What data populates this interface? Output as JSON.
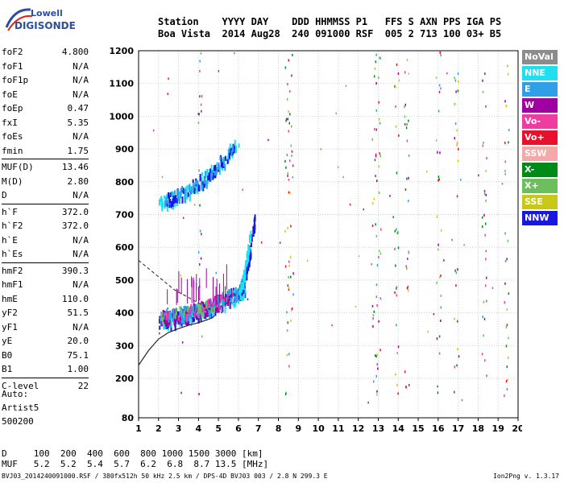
{
  "logo": {
    "line1": "Lowell",
    "line2": "DIGISONDE"
  },
  "header": {
    "labels": "Station    YYYY DAY    DDD HHMMSS P1   FFS S AXN PPS IGA PS",
    "values": "Boa Vista  2014 Aug28  240 091000 RSF  005 2 713 100 03+ B5"
  },
  "params": [
    {
      "name": "foF2",
      "value": "4.800"
    },
    {
      "name": "foF1",
      "value": "N/A"
    },
    {
      "name": "foF1p",
      "value": "N/A"
    },
    {
      "name": "foE",
      "value": "N/A"
    },
    {
      "name": "foEp",
      "value": "0.47"
    },
    {
      "name": "fxI",
      "value": "5.35"
    },
    {
      "name": "foEs",
      "value": "N/A"
    },
    {
      "name": "fmin",
      "value": "1.75"
    },
    {
      "name": "MUF(D)",
      "value": "13.46"
    },
    {
      "name": "M(D)",
      "value": "2.80"
    },
    {
      "name": "D",
      "value": "N/A"
    },
    {
      "name": "h`F",
      "value": "372.0"
    },
    {
      "name": "h`F2",
      "value": "372.0"
    },
    {
      "name": "h`E",
      "value": "N/A"
    },
    {
      "name": "h`Es",
      "value": "N/A"
    },
    {
      "name": "hmF2",
      "value": "390.3"
    },
    {
      "name": "hmF1",
      "value": "N/A"
    },
    {
      "name": "hmE",
      "value": "110.0"
    },
    {
      "name": "yF2",
      "value": "51.5"
    },
    {
      "name": "yF1",
      "value": "N/A"
    },
    {
      "name": "yE",
      "value": "20.0"
    },
    {
      "name": "B0",
      "value": "75.1"
    },
    {
      "name": "B1",
      "value": "1.00"
    },
    {
      "name": "C-level",
      "value": "22"
    }
  ],
  "auto": {
    "line1": "Auto:",
    "line2": "Artist5",
    "line3": "500200"
  },
  "legend": [
    {
      "label": "NoVal",
      "color": "#8c8c8c"
    },
    {
      "label": "NNE",
      "color": "#20e0f0"
    },
    {
      "label": "E",
      "color": "#2f9fe8"
    },
    {
      "label": "W",
      "color": "#a000a0"
    },
    {
      "label": "Vo-",
      "color": "#f03ca0"
    },
    {
      "label": "Vo+",
      "color": "#e8102c"
    },
    {
      "label": "SSW",
      "color": "#f4a8a8"
    },
    {
      "label": "X-",
      "color": "#008a18"
    },
    {
      "label": "X+",
      "color": "#6cbf5c"
    },
    {
      "label": "SSE",
      "color": "#c8c818"
    },
    {
      "label": "NNW",
      "color": "#1818e0"
    }
  ],
  "dmuf": {
    "d_row": "D     100  200  400  600  800 1000 1500 3000 [km]",
    "muf_row": "MUF   5.2  5.2  5.4  5.7  6.2  6.8  8.7 13.5 [MHz]"
  },
  "footer": "BVJ03_2014240091000.RSF / 380fx512h 50 kHz 2.5 km / DPS-4D BVJ03 003 / 2.8 N 299.3 E",
  "version": "Ion2Png v. 1.3.17",
  "chart_data": {
    "type": "scatter",
    "x_ticks": [
      1,
      2,
      3,
      4,
      5,
      6,
      7,
      8,
      9,
      10,
      11,
      12,
      13,
      14,
      15,
      16,
      17,
      18,
      19,
      20
    ],
    "y_ticks": [
      80,
      200,
      300,
      400,
      500,
      600,
      700,
      800,
      900,
      1000,
      1100,
      1200
    ],
    "xlim": [
      1,
      20
    ],
    "ylim": [
      80,
      1200
    ],
    "grid": true,
    "profile": [
      [
        1.0,
        240
      ],
      [
        1.5,
        285
      ],
      [
        2.0,
        320
      ],
      [
        2.5,
        340
      ],
      [
        3.0,
        352
      ],
      [
        3.5,
        362
      ],
      [
        4.0,
        370
      ],
      [
        4.4,
        378
      ],
      [
        4.7,
        385
      ],
      [
        4.8,
        392
      ]
    ],
    "profile_dashed": [
      [
        1.0,
        560
      ],
      [
        1.6,
        530
      ],
      [
        2.2,
        500
      ],
      [
        2.8,
        470
      ],
      [
        3.4,
        450
      ],
      [
        4.0,
        430
      ],
      [
        4.6,
        410
      ]
    ],
    "traces": [
      {
        "x0": 2.0,
        "x1": 6.3,
        "y0": 380,
        "y1": 480,
        "color": "#1818e0",
        "n": 160
      },
      {
        "x0": 2.0,
        "x1": 6.3,
        "y0": 385,
        "y1": 470,
        "color": "#20e0f0",
        "n": 140
      },
      {
        "x0": 2.1,
        "x1": 5.8,
        "y0": 390,
        "y1": 460,
        "color": "#a000a0",
        "n": 120
      },
      {
        "x0": 2.2,
        "x1": 6.0,
        "y0": 392,
        "y1": 470,
        "color": "#2f9fe8",
        "n": 70
      },
      {
        "x0": 2.0,
        "x1": 5.5,
        "y0": 390,
        "y1": 450,
        "color": "#f03ca0",
        "n": 30
      },
      {
        "x0": 2.0,
        "x1": 5.0,
        "y0": 395,
        "y1": 440,
        "color": "#6cbf5c",
        "n": 20
      },
      {
        "x0": 6.0,
        "x1": 6.8,
        "y0": 470,
        "y1": 690,
        "color": "#1818e0",
        "n": 70
      },
      {
        "x0": 6.0,
        "x1": 6.6,
        "y0": 470,
        "y1": 660,
        "color": "#20e0f0",
        "n": 50
      },
      {
        "x0": 2.0,
        "x1": 6.0,
        "y0": 740,
        "y1": 930,
        "color": "#20e0f0",
        "n": 110
      },
      {
        "x0": 2.1,
        "x1": 5.8,
        "y0": 745,
        "y1": 910,
        "color": "#1818e0",
        "n": 60
      },
      {
        "x0": 2.2,
        "x1": 5.7,
        "y0": 750,
        "y1": 900,
        "color": "#2f9fe8",
        "n": 40
      }
    ],
    "noise_columns": [
      4.05,
      8.4,
      8.6,
      12.8,
      13.0,
      13.9,
      14.4,
      16.0,
      16.9,
      18.3,
      19.4
    ]
  }
}
